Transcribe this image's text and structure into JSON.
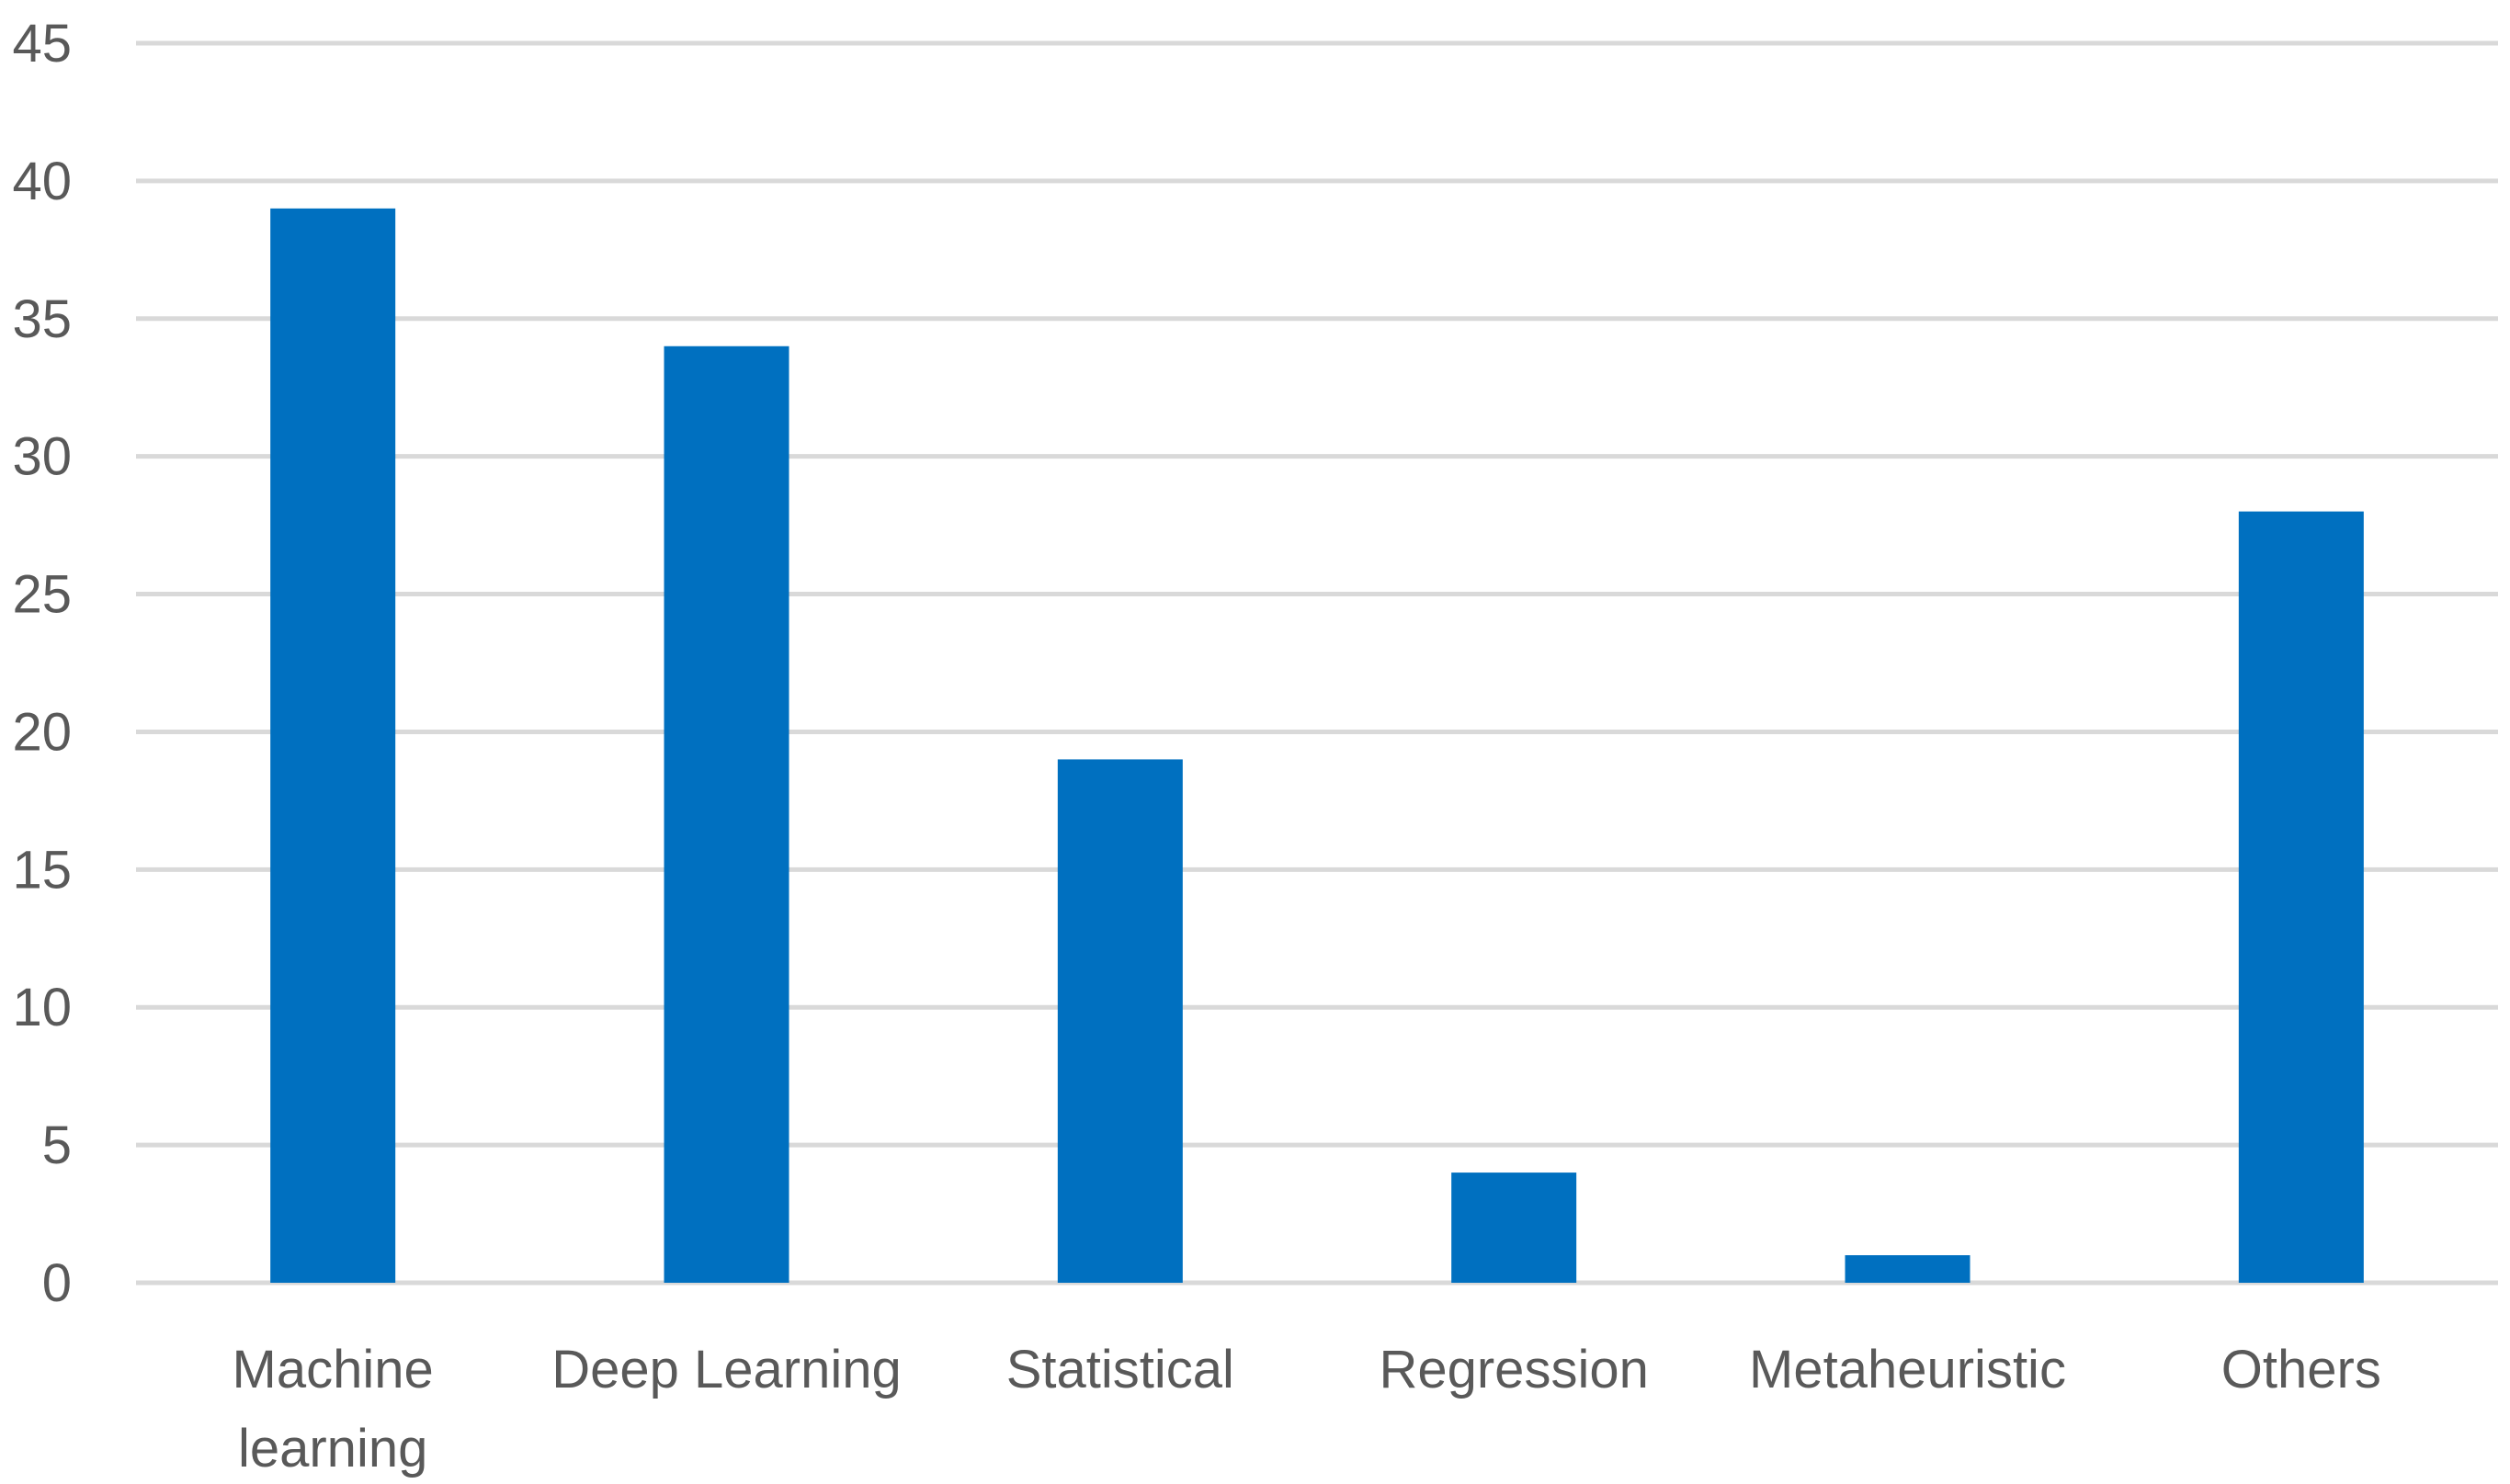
{
  "chart_data": {
    "type": "bar",
    "categories": [
      "Machine learning",
      "Deep Learning",
      "Statistical",
      "Regression",
      "Metaheuristic",
      "Others"
    ],
    "category_label_lines": [
      [
        "Machine",
        "learning"
      ],
      [
        "Deep Learning"
      ],
      [
        "Statistical"
      ],
      [
        "Regression"
      ],
      [
        "Metaheuristic"
      ],
      [
        "Others"
      ]
    ],
    "values": [
      39,
      34,
      19,
      4,
      1,
      28
    ],
    "title": "",
    "xlabel": "",
    "ylabel": "",
    "ylim": [
      0,
      45
    ],
    "yticks": [
      0,
      5,
      10,
      15,
      20,
      25,
      30,
      35,
      40,
      45
    ],
    "grid": true,
    "legend": "none",
    "bar_color": "#0070C0",
    "grid_color": "#D9D9D9",
    "label_color": "#595959"
  }
}
